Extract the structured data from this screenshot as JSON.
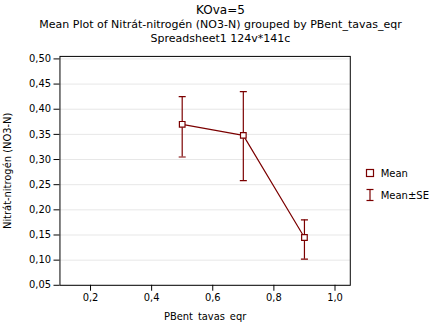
{
  "chart_data": {
    "type": "line",
    "title": "KOva=5",
    "subtitle": [
      "Mean Plot of Nitrát-nitrogén (NO3-N) grouped by  PBent_tavas_eqr",
      "Spreadsheet1 124v*141c"
    ],
    "xlabel": "PBent_tavas_eqr",
    "ylabel": "Nitrát-nitrogén (NO3-N)",
    "x": [
      0.5,
      0.7,
      0.9
    ],
    "series": [
      {
        "name": "Mean",
        "color": "#7B0000",
        "marker": "square",
        "line_style": "solid",
        "values": [
          0.37,
          0.348,
          0.145
        ]
      }
    ],
    "error_bars": {
      "name": "Mean±SE",
      "color": "#7B0000",
      "lower": [
        0.305,
        0.258,
        0.102
      ],
      "upper": [
        0.425,
        0.435,
        0.18
      ]
    },
    "xlim": [
      0.1,
      1.05
    ],
    "ylim": [
      0.05,
      0.505
    ],
    "xticks": [
      {
        "value": 0.2,
        "label": "0,2"
      },
      {
        "value": 0.4,
        "label": "0,4"
      },
      {
        "value": 0.6,
        "label": "0,6"
      },
      {
        "value": 0.8,
        "label": "0,8"
      },
      {
        "value": 1.0,
        "label": "1,0"
      }
    ],
    "yticks": [
      {
        "value": 0.05,
        "label": "0,05"
      },
      {
        "value": 0.1,
        "label": "0,10"
      },
      {
        "value": 0.15,
        "label": "0,15"
      },
      {
        "value": 0.2,
        "label": "0,20"
      },
      {
        "value": 0.25,
        "label": "0,25"
      },
      {
        "value": 0.3,
        "label": "0,30"
      },
      {
        "value": 0.35,
        "label": "0,35"
      },
      {
        "value": 0.4,
        "label": "0,40"
      },
      {
        "value": 0.45,
        "label": "0,45"
      },
      {
        "value": 0.5,
        "label": "0,50"
      }
    ],
    "grid": "y",
    "legend": "right"
  }
}
